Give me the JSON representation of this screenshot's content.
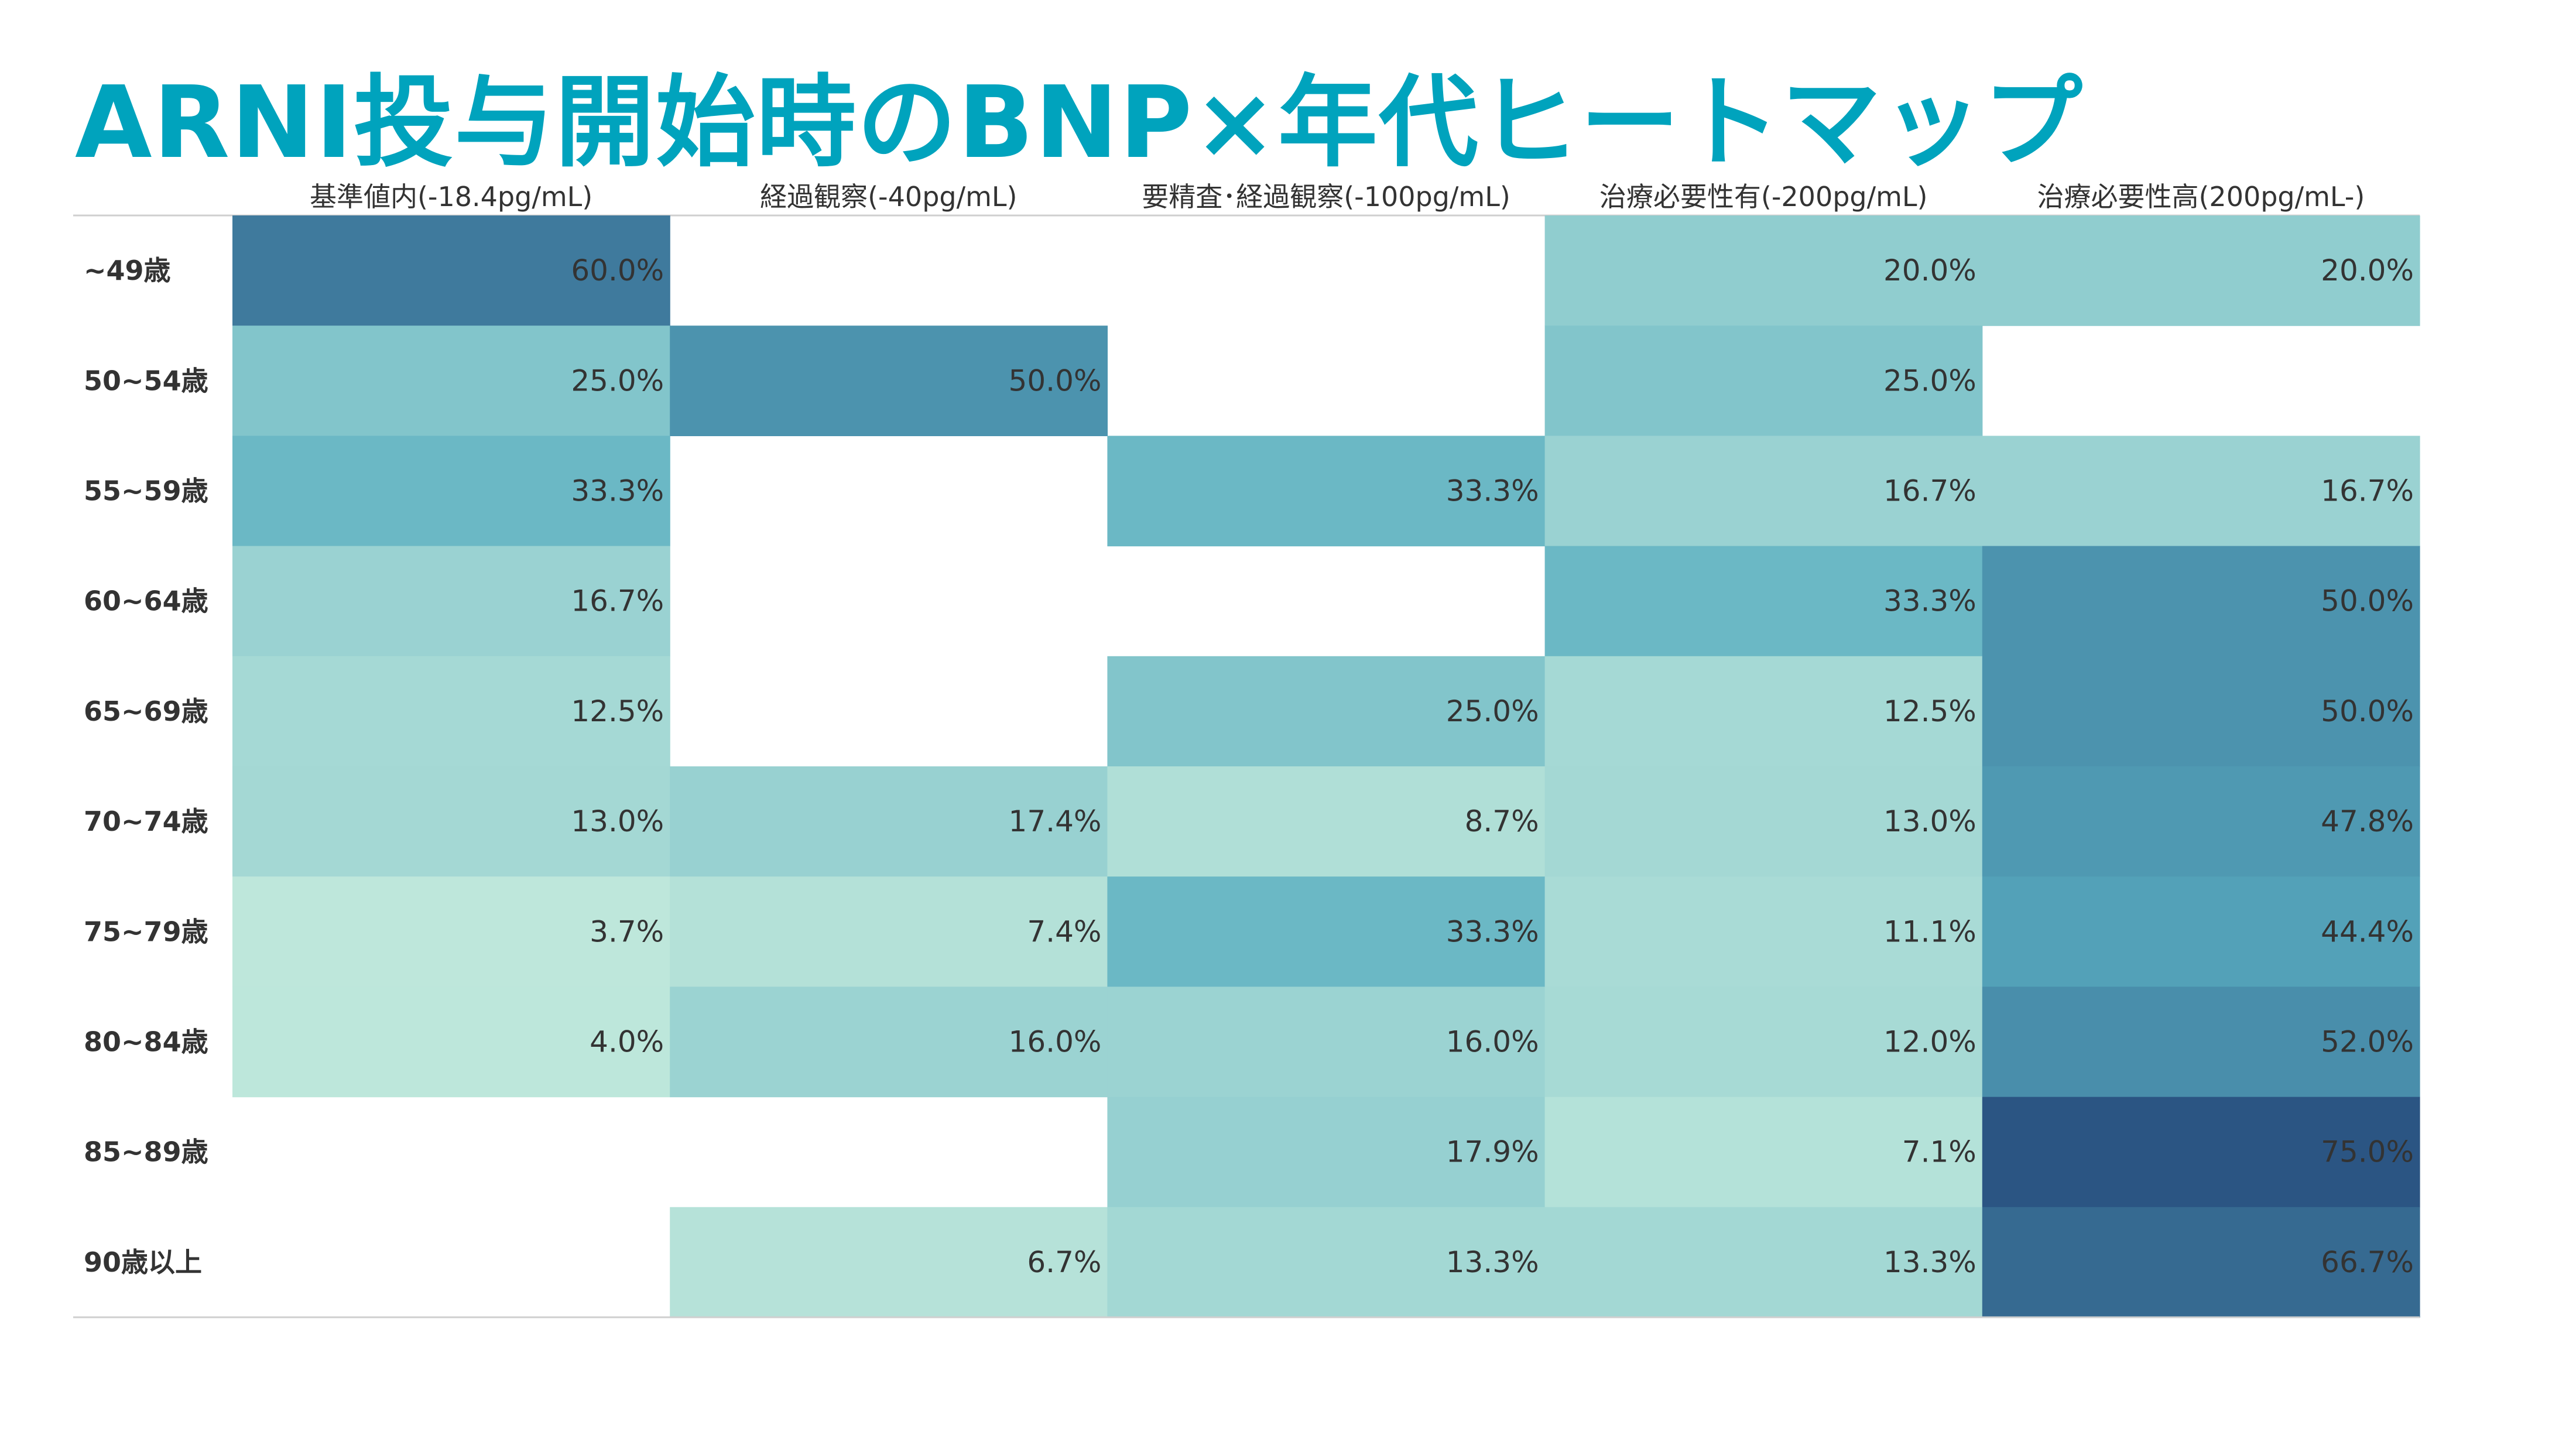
{
  "title": "ARNI投与開始時のBNP×年代ヒートマップ",
  "chart_data": {
    "type": "heatmap",
    "title": "ARNI投与開始時のBNP×年代ヒートマップ",
    "columns": [
      "基準値内(-18.4pg/mL)",
      "経過観察(-40pg/mL)",
      "要精査･経過観察(-100pg/mL)",
      "治療必要性有(-200pg/mL)",
      "治療必要性高(200pg/mL-)"
    ],
    "rows": [
      "~49歳",
      "50~54歳",
      "55~59歳",
      "60~64歳",
      "65~69歳",
      "70~74歳",
      "75~79歳",
      "80~84歳",
      "85~89歳",
      "90歳以上"
    ],
    "values": [
      [
        60.0,
        null,
        null,
        20.0,
        20.0
      ],
      [
        25.0,
        50.0,
        null,
        25.0,
        null
      ],
      [
        33.3,
        null,
        33.3,
        16.7,
        16.7
      ],
      [
        16.7,
        null,
        null,
        33.3,
        50.0
      ],
      [
        12.5,
        null,
        25.0,
        12.5,
        50.0
      ],
      [
        13.0,
        17.4,
        8.7,
        13.0,
        47.8
      ],
      [
        3.7,
        7.4,
        33.3,
        11.1,
        44.4
      ],
      [
        4.0,
        16.0,
        16.0,
        12.0,
        52.0
      ],
      [
        null,
        null,
        17.9,
        7.1,
        75.0
      ],
      [
        null,
        6.7,
        13.3,
        13.3,
        66.7
      ]
    ],
    "value_format": "percent_1dp",
    "color_scale": [
      "#BEE7DB",
      "#2B5583"
    ]
  }
}
